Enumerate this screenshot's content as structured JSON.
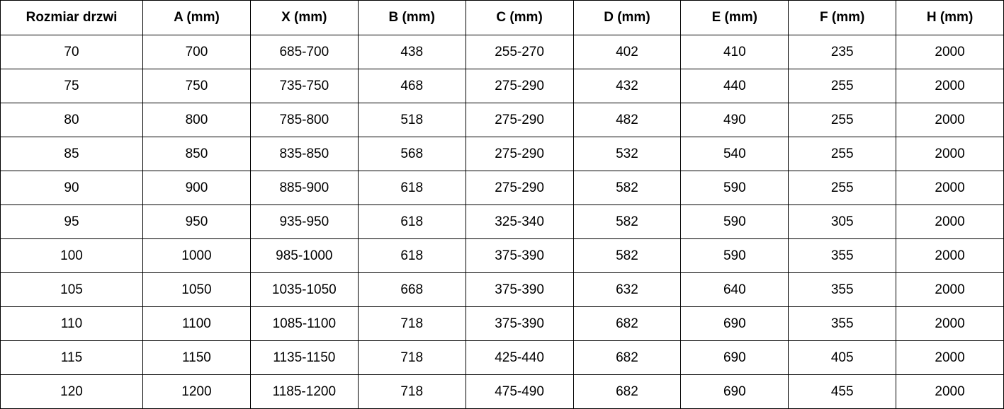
{
  "headers": [
    "Rozmiar drzwi",
    "A (mm)",
    "X (mm)",
    "B (mm)",
    "C (mm)",
    "D (mm)",
    "E (mm)",
    "F (mm)",
    "H (mm)"
  ],
  "rows": [
    [
      "70",
      "700",
      "685-700",
      "438",
      "255-270",
      "402",
      "410",
      "235",
      "2000"
    ],
    [
      "75",
      "750",
      "735-750",
      "468",
      "275-290",
      "432",
      "440",
      "255",
      "2000"
    ],
    [
      "80",
      "800",
      "785-800",
      "518",
      "275-290",
      "482",
      "490",
      "255",
      "2000"
    ],
    [
      "85",
      "850",
      "835-850",
      "568",
      "275-290",
      "532",
      "540",
      "255",
      "2000"
    ],
    [
      "90",
      "900",
      "885-900",
      "618",
      "275-290",
      "582",
      "590",
      "255",
      "2000"
    ],
    [
      "95",
      "950",
      "935-950",
      "618",
      "325-340",
      "582",
      "590",
      "305",
      "2000"
    ],
    [
      "100",
      "1000",
      "985-1000",
      "618",
      "375-390",
      "582",
      "590",
      "355",
      "2000"
    ],
    [
      "105",
      "1050",
      "1035-1050",
      "668",
      "375-390",
      "632",
      "640",
      "355",
      "2000"
    ],
    [
      "110",
      "1100",
      "1085-1100",
      "718",
      "375-390",
      "682",
      "690",
      "355",
      "2000"
    ],
    [
      "115",
      "1150",
      "1135-1150",
      "718",
      "425-440",
      "682",
      "690",
      "405",
      "2000"
    ],
    [
      "120",
      "1200",
      "1185-1200",
      "718",
      "475-490",
      "682",
      "690",
      "455",
      "2000"
    ]
  ]
}
